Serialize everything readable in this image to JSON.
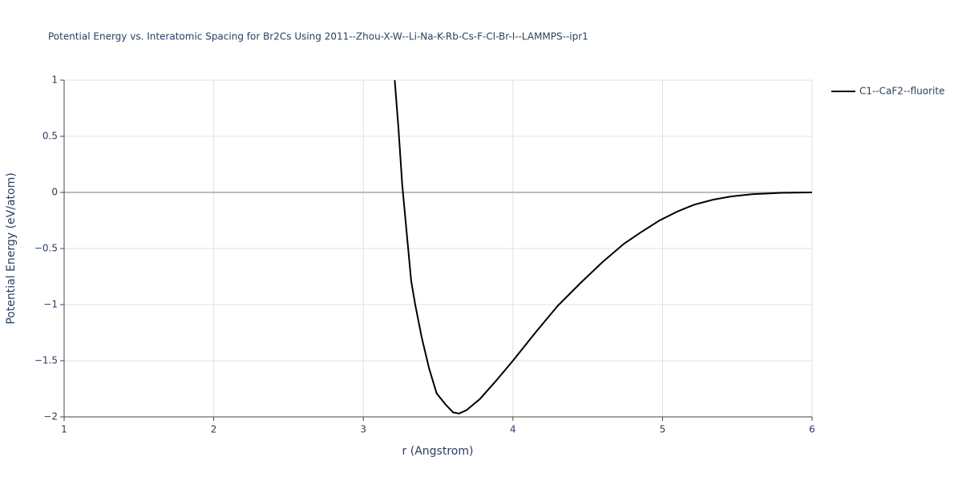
{
  "chart_data": {
    "type": "line",
    "title": "Potential Energy vs. Interatomic Spacing for Br2Cs Using 2011--Zhou-X-W--Li-Na-K-Rb-Cs-F-Cl-Br-I--LAMMPS--ipr1",
    "x_label": "r (Angstrom)",
    "y_label": "Potential Energy (eV/atom)",
    "x": [
      3.21,
      3.235,
      3.26,
      3.29,
      3.32,
      3.347,
      3.39,
      3.44,
      3.49,
      3.55,
      3.6,
      3.64,
      3.69,
      3.78,
      3.88,
      4.0,
      4.15,
      4.3,
      4.45,
      4.6,
      4.74,
      4.85,
      4.98,
      5.1,
      5.21,
      5.34,
      5.46,
      5.6,
      5.8,
      6.0
    ],
    "series": [
      {
        "name": "C1--CaF2--fluorite",
        "color": "#000000",
        "values": [
          1.0,
          0.57,
          0.07,
          -0.36,
          -0.79,
          -1.0,
          -1.29,
          -1.57,
          -1.79,
          -1.89,
          -1.96,
          -1.97,
          -1.94,
          -1.84,
          -1.69,
          -1.5,
          -1.25,
          -1.01,
          -0.81,
          -0.62,
          -0.46,
          -0.36,
          -0.25,
          -0.17,
          -0.11,
          -0.064,
          -0.036,
          -0.016,
          -0.004,
          0
        ]
      }
    ],
    "xlim": [
      1,
      6
    ],
    "xticks": [
      1,
      2,
      3,
      4,
      5,
      6
    ],
    "ylim": [
      -2,
      1
    ],
    "yticks": [
      {
        "value": -2,
        "label": "−2"
      },
      {
        "value": -1.5,
        "label": "−1.5"
      },
      {
        "value": -1,
        "label": "−1"
      },
      {
        "value": -0.5,
        "label": "−0.5"
      },
      0,
      0.5,
      1
    ],
    "grid": true,
    "legend": "right"
  }
}
